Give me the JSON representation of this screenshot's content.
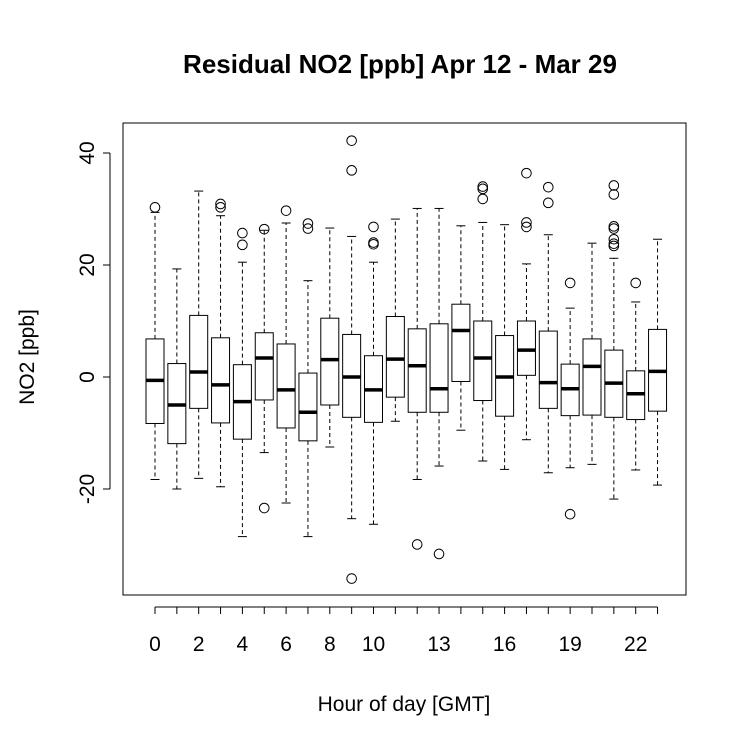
{
  "chart_data": {
    "type": "boxplot",
    "title": "Residual NO2 [ppb] Apr 12 - Mar 29",
    "xlabel": "Hour of day [GMT]",
    "ylabel": "NO2 [ppb]",
    "ylim": [
      -39,
      45
    ],
    "yticks": [
      -20,
      0,
      20,
      40
    ],
    "xtick_labels": [
      "0",
      "2",
      "4",
      "6",
      "8",
      "10",
      "13",
      "16",
      "19",
      "22"
    ],
    "xtick_positions": [
      0,
      2,
      4,
      6,
      8,
      10,
      13,
      16,
      19,
      22
    ],
    "grid": false,
    "legend": "none",
    "boxes": [
      {
        "hour": 0,
        "whisker_low": -18.3,
        "q1": -8.3,
        "median": -0.6,
        "q3": 6.8,
        "whisker_high": 29.4,
        "outliers": [
          30.3
        ]
      },
      {
        "hour": 1,
        "whisker_low": -20.0,
        "q1": -11.9,
        "median": -5.0,
        "q3": 2.4,
        "whisker_high": 19.3,
        "outliers": []
      },
      {
        "hour": 2,
        "whisker_low": -18.1,
        "q1": -5.6,
        "median": 0.9,
        "q3": 11.0,
        "whisker_high": 33.2,
        "outliers": []
      },
      {
        "hour": 3,
        "whisker_low": -19.6,
        "q1": -8.2,
        "median": -1.4,
        "q3": 7.0,
        "whisker_high": 28.8,
        "outliers": [
          30.3,
          30.9
        ]
      },
      {
        "hour": 4,
        "whisker_low": -28.5,
        "q1": -11.1,
        "median": -4.4,
        "q3": 2.2,
        "whisker_high": 20.5,
        "outliers": [
          23.6,
          25.7
        ]
      },
      {
        "hour": 5,
        "whisker_low": -13.5,
        "q1": -4.1,
        "median": 3.4,
        "q3": 7.9,
        "whisker_high": 26.2,
        "outliers": [
          26.4,
          -23.4
        ]
      },
      {
        "hour": 6,
        "whisker_low": -22.5,
        "q1": -9.1,
        "median": -2.3,
        "q3": 5.9,
        "whisker_high": 27.5,
        "outliers": [
          29.7
        ]
      },
      {
        "hour": 7,
        "whisker_low": -28.5,
        "q1": -11.4,
        "median": -6.3,
        "q3": 0.7,
        "whisker_high": 17.2,
        "outliers": [
          26.5,
          27.4
        ]
      },
      {
        "hour": 8,
        "whisker_low": -12.5,
        "q1": -5.0,
        "median": 3.1,
        "q3": 10.5,
        "whisker_high": 26.6,
        "outliers": []
      },
      {
        "hour": 9,
        "whisker_low": -25.3,
        "q1": -7.2,
        "median": 0.0,
        "q3": 7.6,
        "whisker_high": 25.1,
        "outliers": [
          36.9,
          42.2,
          -36.0
        ]
      },
      {
        "hour": 10,
        "whisker_low": -26.3,
        "q1": -8.1,
        "median": -2.3,
        "q3": 3.8,
        "whisker_high": 20.5,
        "outliers": [
          23.7,
          24.0,
          26.8
        ]
      },
      {
        "hour": 11,
        "whisker_low": -7.9,
        "q1": -3.6,
        "median": 3.2,
        "q3": 10.8,
        "whisker_high": 28.2,
        "outliers": []
      },
      {
        "hour": 12,
        "whisker_low": -18.3,
        "q1": -6.3,
        "median": 2.0,
        "q3": 8.6,
        "whisker_high": 30.1,
        "outliers": [
          -29.9
        ]
      },
      {
        "hour": 13,
        "whisker_low": -15.9,
        "q1": -6.3,
        "median": -2.1,
        "q3": 9.5,
        "whisker_high": 30.1,
        "outliers": [
          -31.6
        ]
      },
      {
        "hour": 14,
        "whisker_low": -9.5,
        "q1": -0.8,
        "median": 8.3,
        "q3": 13.0,
        "whisker_high": 27.0,
        "outliers": []
      },
      {
        "hour": 15,
        "whisker_low": -15.0,
        "q1": -4.2,
        "median": 3.4,
        "q3": 10.0,
        "whisker_high": 27.6,
        "outliers": [
          31.8,
          33.6,
          34.0
        ]
      },
      {
        "hour": 16,
        "whisker_low": -16.5,
        "q1": -7.0,
        "median": 0.0,
        "q3": 7.4,
        "whisker_high": 27.2,
        "outliers": []
      },
      {
        "hour": 17,
        "whisker_low": -11.2,
        "q1": 0.3,
        "median": 4.8,
        "q3": 10.0,
        "whisker_high": 20.2,
        "outliers": [
          26.8,
          27.6,
          36.4
        ]
      },
      {
        "hour": 18,
        "whisker_low": -17.1,
        "q1": -5.6,
        "median": -1.0,
        "q3": 8.2,
        "whisker_high": 25.4,
        "outliers": [
          31.1,
          33.9
        ]
      },
      {
        "hour": 19,
        "whisker_low": -16.2,
        "q1": -6.9,
        "median": -2.1,
        "q3": 2.3,
        "whisker_high": 12.3,
        "outliers": [
          16.8,
          -24.5
        ]
      },
      {
        "hour": 20,
        "whisker_low": -15.6,
        "q1": -6.8,
        "median": 1.9,
        "q3": 6.8,
        "whisker_high": 23.9,
        "outliers": []
      },
      {
        "hour": 21,
        "whisker_low": -21.8,
        "q1": -7.2,
        "median": -1.1,
        "q3": 4.8,
        "whisker_high": 21.2,
        "outliers": [
          23.4,
          23.8,
          24.6,
          26.5,
          26.9,
          32.6,
          34.2
        ]
      },
      {
        "hour": 22,
        "whisker_low": -16.6,
        "q1": -7.6,
        "median": -3.0,
        "q3": 1.1,
        "whisker_high": 13.4,
        "outliers": [
          16.8
        ]
      },
      {
        "hour": 23,
        "whisker_low": -19.3,
        "q1": -6.1,
        "median": 1.0,
        "q3": 8.5,
        "whisker_high": 24.6,
        "outliers": []
      }
    ]
  }
}
